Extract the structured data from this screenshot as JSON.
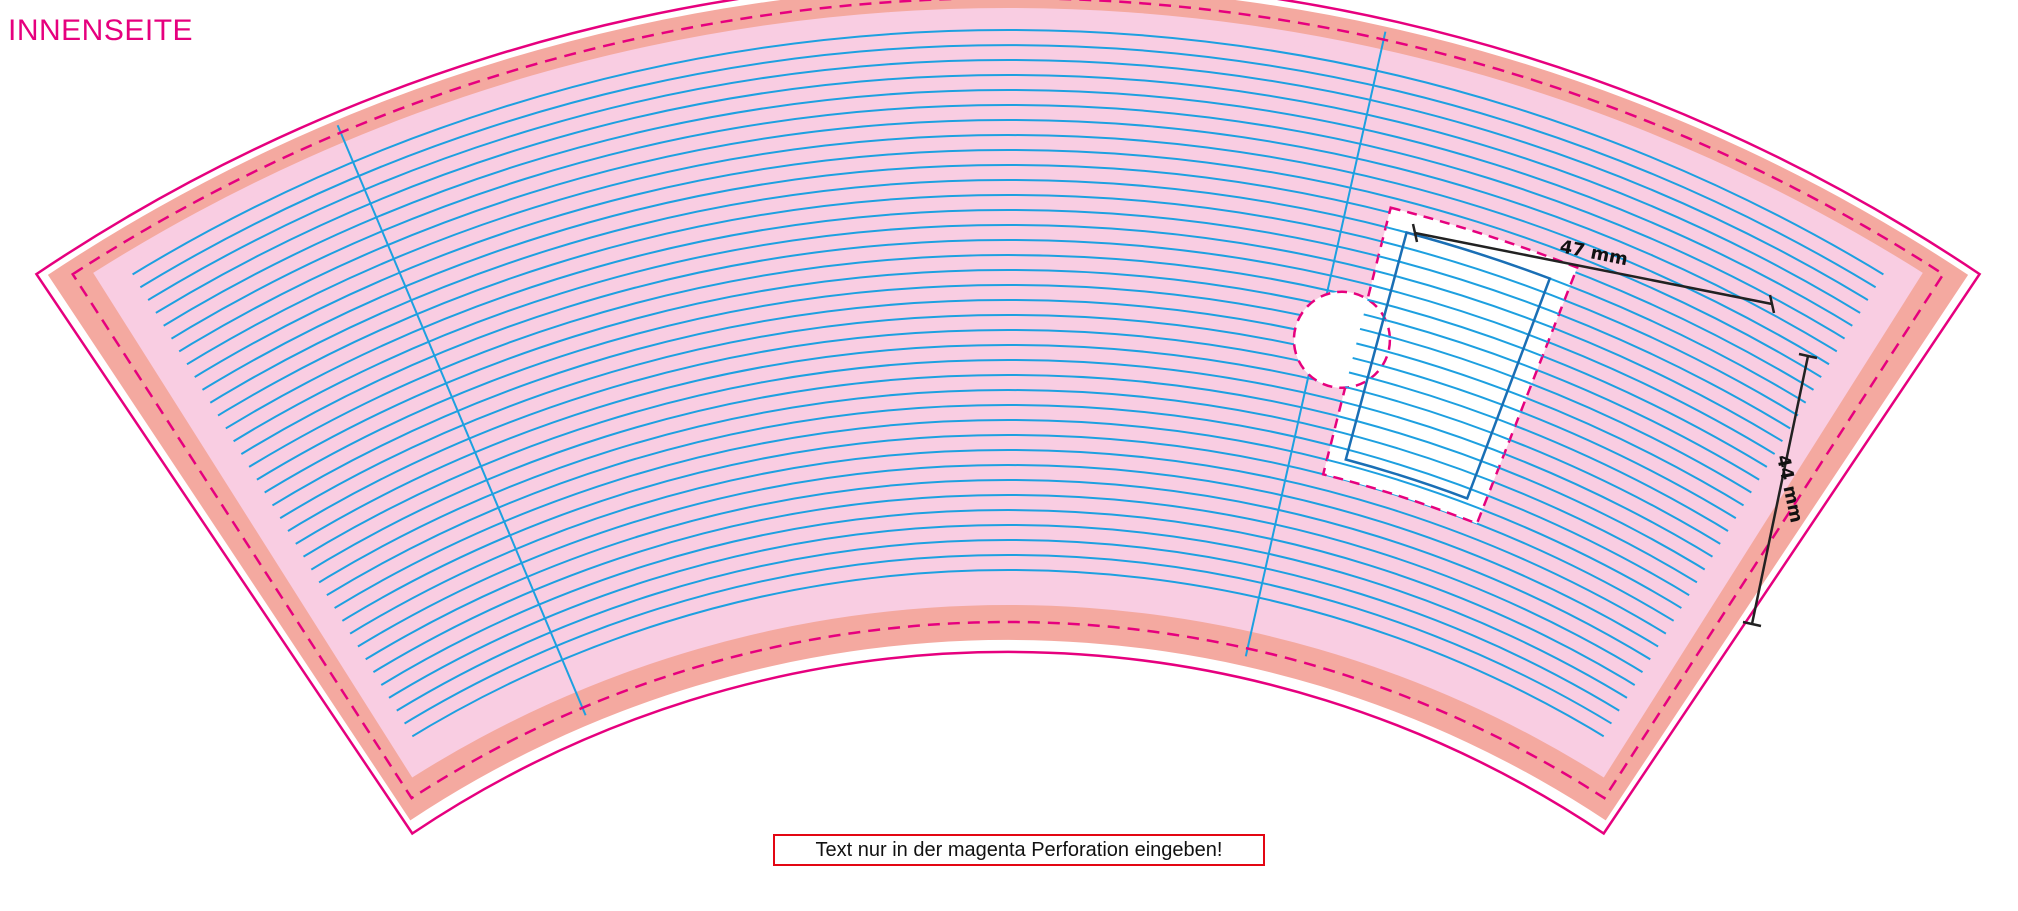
{
  "page": {
    "title": "INNENSEITE",
    "notice": "Text nur in der magenta Perforation eingeben!"
  },
  "dimensions": {
    "width_label": "47 mm",
    "height_label": "44 mm"
  },
  "colors": {
    "magenta": "#e6007e",
    "bleed": "#f4a9a0",
    "safe_area": "#f9cde2",
    "guide_blue": "#1da0e0",
    "window_fill": "#ffffff",
    "window_outline": "#1a6fb5",
    "notice_border": "#e30613",
    "dimension_line": "#222222"
  }
}
